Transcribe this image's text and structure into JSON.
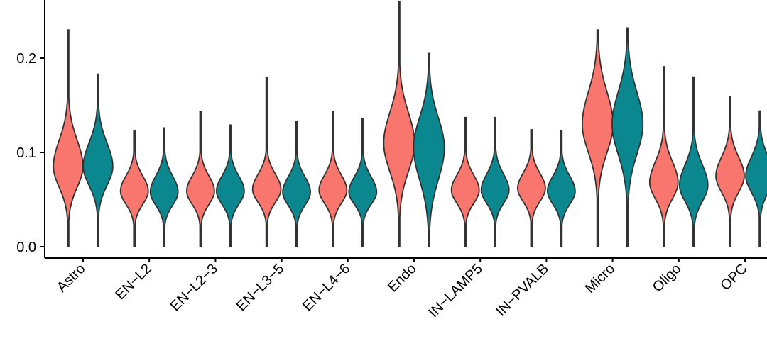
{
  "chart_data": {
    "type": "violin",
    "title": "",
    "xlabel": "",
    "ylabel": "",
    "ylim": [
      -0.012,
      0.26
    ],
    "y_ticks": [
      0.0,
      0.1,
      0.2
    ],
    "y_tick_labels": [
      "0.0",
      "0.1",
      "0.2"
    ],
    "grid": false,
    "legend": "none",
    "categories": [
      "Astro",
      "EN−L2",
      "EN−L2−3",
      "EN−L3−5",
      "EN−L4−6",
      "Endo",
      "IN−LAMP5",
      "IN−PVALB",
      "Micro",
      "Oligo",
      "OPC"
    ],
    "series_colors": [
      "#f8766d",
      "#0b8790"
    ],
    "groups": [
      {
        "category": "Astro",
        "violins": [
          {
            "min": 0.0,
            "max": 0.23,
            "peak": 0.085,
            "halfwidth": 0.48,
            "sd_low": 0.022,
            "sd_high": 0.028
          },
          {
            "min": 0.0,
            "max": 0.183,
            "peak": 0.085,
            "halfwidth": 0.48,
            "sd_low": 0.02,
            "sd_high": 0.025
          }
        ]
      },
      {
        "category": "EN−L2",
        "violins": [
          {
            "min": 0.0,
            "max": 0.123,
            "peak": 0.059,
            "halfwidth": 0.45,
            "sd_low": 0.014,
            "sd_high": 0.016
          },
          {
            "min": 0.0,
            "max": 0.126,
            "peak": 0.058,
            "halfwidth": 0.45,
            "sd_low": 0.014,
            "sd_high": 0.017
          }
        ]
      },
      {
        "category": "EN−L2−3",
        "violins": [
          {
            "min": 0.0,
            "max": 0.143,
            "peak": 0.059,
            "halfwidth": 0.45,
            "sd_low": 0.014,
            "sd_high": 0.016
          },
          {
            "min": 0.0,
            "max": 0.129,
            "peak": 0.059,
            "halfwidth": 0.45,
            "sd_low": 0.014,
            "sd_high": 0.016
          }
        ]
      },
      {
        "category": "EN−L3−5",
        "violins": [
          {
            "min": 0.0,
            "max": 0.179,
            "peak": 0.061,
            "halfwidth": 0.46,
            "sd_low": 0.014,
            "sd_high": 0.016
          },
          {
            "min": 0.0,
            "max": 0.133,
            "peak": 0.058,
            "halfwidth": 0.45,
            "sd_low": 0.014,
            "sd_high": 0.016
          }
        ]
      },
      {
        "category": "EN−L4−6",
        "violins": [
          {
            "min": 0.0,
            "max": 0.143,
            "peak": 0.06,
            "halfwidth": 0.45,
            "sd_low": 0.014,
            "sd_high": 0.016
          },
          {
            "min": 0.0,
            "max": 0.136,
            "peak": 0.058,
            "halfwidth": 0.45,
            "sd_low": 0.013,
            "sd_high": 0.016
          }
        ]
      },
      {
        "category": "Endo",
        "violins": [
          {
            "min": 0.0,
            "max": 0.26,
            "peak": 0.11,
            "halfwidth": 0.5,
            "sd_low": 0.03,
            "sd_high": 0.032
          },
          {
            "min": 0.0,
            "max": 0.205,
            "peak": 0.105,
            "halfwidth": 0.5,
            "sd_low": 0.034,
            "sd_high": 0.032
          }
        ]
      },
      {
        "category": "IN−LAMP5",
        "violins": [
          {
            "min": 0.0,
            "max": 0.137,
            "peak": 0.06,
            "halfwidth": 0.45,
            "sd_low": 0.014,
            "sd_high": 0.016
          },
          {
            "min": 0.0,
            "max": 0.137,
            "peak": 0.06,
            "halfwidth": 0.45,
            "sd_low": 0.014,
            "sd_high": 0.017
          }
        ]
      },
      {
        "category": "IN−PVALB",
        "violins": [
          {
            "min": 0.0,
            "max": 0.124,
            "peak": 0.062,
            "halfwidth": 0.45,
            "sd_low": 0.014,
            "sd_high": 0.016
          },
          {
            "min": 0.0,
            "max": 0.123,
            "peak": 0.059,
            "halfwidth": 0.45,
            "sd_low": 0.014,
            "sd_high": 0.016
          }
        ]
      },
      {
        "category": "Micro",
        "violins": [
          {
            "min": 0.0,
            "max": 0.23,
            "peak": 0.13,
            "halfwidth": 0.5,
            "sd_low": 0.03,
            "sd_high": 0.034
          },
          {
            "min": 0.0,
            "max": 0.232,
            "peak": 0.13,
            "halfwidth": 0.5,
            "sd_low": 0.032,
            "sd_high": 0.034
          }
        ]
      },
      {
        "category": "Oligo",
        "violins": [
          {
            "min": 0.0,
            "max": 0.191,
            "peak": 0.068,
            "halfwidth": 0.46,
            "sd_low": 0.017,
            "sd_high": 0.022
          },
          {
            "min": 0.0,
            "max": 0.18,
            "peak": 0.065,
            "halfwidth": 0.46,
            "sd_low": 0.017,
            "sd_high": 0.022
          }
        ]
      },
      {
        "category": "OPC",
        "violins": [
          {
            "min": 0.0,
            "max": 0.159,
            "peak": 0.075,
            "halfwidth": 0.46,
            "sd_low": 0.017,
            "sd_high": 0.02
          },
          {
            "min": 0.0,
            "max": 0.144,
            "peak": 0.075,
            "halfwidth": 0.46,
            "sd_low": 0.017,
            "sd_high": 0.02
          }
        ]
      }
    ]
  }
}
